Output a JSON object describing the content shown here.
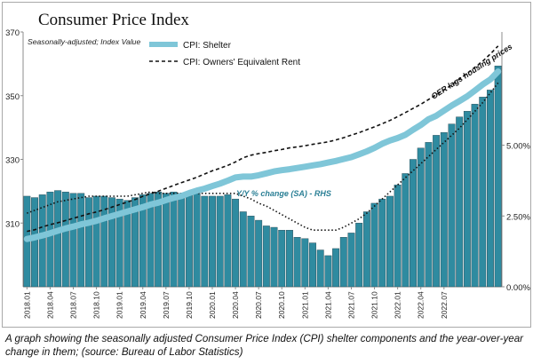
{
  "title": "Consumer Price Index",
  "caption": "A graph showing the seasonally adjusted Consumer Price Index (CPI) shelter components and the year-over-year change in them; (source: Bureau of Labor Statistics)",
  "chart_data": {
    "type": "bar",
    "subtitle": "Seasonally-adjusted; Index Value",
    "colors": {
      "bars": "#2f8ba0",
      "shelter_line": "#7fc6d8",
      "oer_line": "#111111",
      "yoy_label": "#2a7f95"
    },
    "x_tick_labels": [
      "2018.01",
      "2018.04",
      "2018.07",
      "2018.10",
      "2019.01",
      "2019.04",
      "2019.07",
      "2019.10",
      "2020.01",
      "2020.04",
      "2020.07",
      "2020.10",
      "2021.01",
      "2021.04",
      "2021.07",
      "2021.10",
      "2022.01",
      "2022.04",
      "2022.07"
    ],
    "x_tick_every": 3,
    "left_axis": {
      "ylim": [
        290,
        370
      ],
      "ticks": [
        "370",
        "350",
        "330",
        "310"
      ],
      "tick_values": [
        370,
        350,
        330,
        310
      ]
    },
    "right_axis": {
      "ylim": [
        0,
        9.0
      ],
      "ticks": [
        "5.00%",
        "2.50%",
        "0.00%"
      ],
      "tick_values": [
        5.0,
        2.5,
        0.0
      ]
    },
    "legend": {
      "position": "top-center",
      "entries": [
        "CPI: Shelter",
        "CPI: Owners' Equivalent Rent"
      ]
    },
    "annotations": {
      "oer_note": "OER lags housing prices",
      "yoy_label": "Y/Y % change (SA) - RHS"
    },
    "series": [
      {
        "name": "CPI: Shelter",
        "axis": "left",
        "style": "thick-line",
        "values": [
          305.0,
          305.5,
          306.1,
          306.8,
          307.6,
          308.3,
          308.9,
          309.6,
          310.1,
          310.7,
          311.5,
          312.2,
          312.9,
          313.6,
          314.3,
          315.0,
          315.8,
          316.4,
          317.2,
          317.9,
          318.5,
          319.4,
          320.2,
          320.8,
          321.6,
          322.4,
          323.3,
          324.3,
          324.6,
          324.6,
          325.0,
          325.6,
          326.2,
          326.6,
          326.9,
          327.3,
          327.7,
          328.1,
          328.5,
          329.0,
          329.5,
          330.1,
          330.7,
          331.6,
          332.5,
          333.6,
          334.9,
          335.9,
          336.7,
          337.7,
          339.3,
          340.8,
          342.6,
          343.7,
          345.3,
          346.9,
          348.3,
          349.8,
          351.6,
          353.5,
          355.1,
          357.6
        ]
      },
      {
        "name": "CPI: Owners' Equivalent Rent",
        "axis": "left",
        "style": "dashed",
        "values": [
          307.4,
          307.9,
          308.8,
          309.5,
          310.1,
          310.8,
          311.5,
          312.2,
          312.9,
          313.5,
          314.2,
          315.0,
          315.8,
          316.6,
          317.4,
          318.4,
          319.2,
          320.0,
          320.9,
          321.8,
          322.7,
          323.5,
          324.4,
          325.4,
          326.4,
          327.2,
          328.1,
          329.2,
          330.5,
          331.3,
          331.8,
          332.2,
          332.7,
          333.1,
          333.6,
          333.9,
          334.3,
          334.7,
          335.1,
          335.5,
          336.1,
          336.8,
          337.6,
          338.4,
          339.3,
          340.2,
          341.2,
          342.2,
          343.4,
          344.7,
          346.0,
          347.3,
          348.8,
          350.3,
          351.8,
          353.4,
          355.2,
          357.0,
          358.9,
          360.8,
          363.1,
          365.6
        ]
      },
      {
        "name": "Y/Y % change (SA)",
        "axis": "right",
        "style": "bars",
        "values": [
          3.2,
          3.15,
          3.25,
          3.35,
          3.4,
          3.35,
          3.3,
          3.3,
          3.15,
          3.2,
          3.2,
          3.15,
          3.1,
          3.05,
          3.15,
          3.25,
          3.3,
          3.35,
          3.3,
          3.35,
          3.3,
          3.3,
          3.3,
          3.2,
          3.2,
          3.2,
          3.25,
          3.1,
          2.65,
          2.5,
          2.35,
          2.15,
          2.1,
          2.0,
          2.0,
          1.75,
          1.7,
          1.55,
          1.3,
          1.1,
          1.35,
          1.75,
          1.9,
          2.25,
          2.65,
          2.95,
          3.1,
          3.2,
          3.6,
          4.0,
          4.5,
          4.9,
          5.1,
          5.35,
          5.45,
          5.75,
          6.0,
          6.2,
          6.45,
          6.7,
          6.95,
          7.8
        ]
      },
      {
        "name": "Y/Y % change (OER)",
        "axis": "right",
        "style": "dotted",
        "values": [
          2.6,
          2.7,
          2.8,
          2.9,
          3.0,
          3.05,
          3.1,
          3.15,
          3.2,
          3.2,
          3.2,
          3.2,
          3.2,
          3.2,
          3.25,
          3.3,
          3.35,
          3.3,
          3.3,
          3.3,
          3.3,
          3.3,
          3.3,
          3.3,
          3.3,
          3.3,
          3.3,
          3.3,
          3.2,
          3.1,
          2.95,
          2.85,
          2.7,
          2.55,
          2.4,
          2.25,
          2.1,
          2.0,
          2.0,
          2.0,
          2.0,
          2.1,
          2.25,
          2.4,
          2.6,
          2.85,
          3.1,
          3.35,
          3.6,
          3.85,
          4.1,
          4.35,
          4.6,
          4.85,
          5.1,
          5.35,
          5.6,
          5.9,
          6.2,
          6.5,
          6.85,
          7.2
        ]
      }
    ]
  }
}
